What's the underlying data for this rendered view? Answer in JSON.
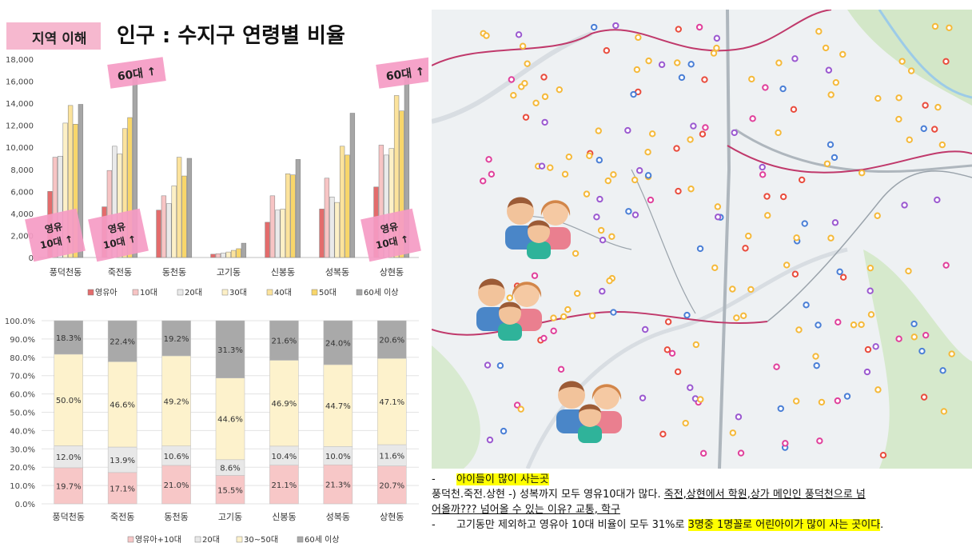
{
  "header": {
    "tag": "지역 이해",
    "title": "인구 : 수지구 연령별 비율"
  },
  "chart_data": [
    {
      "type": "bar",
      "categories": [
        "풍덕천동",
        "죽전동",
        "동천동",
        "고기동",
        "신봉동",
        "성복동",
        "상현동"
      ],
      "series": [
        {
          "name": "영유아",
          "color": "#e36c6c",
          "values": [
            6000,
            4600,
            4300,
            300,
            3200,
            4400,
            6400
          ]
        },
        {
          "name": "10대",
          "color": "#f7c4c4",
          "values": [
            9100,
            7900,
            5600,
            350,
            5600,
            7200,
            10200
          ]
        },
        {
          "name": "20대",
          "color": "#eaeaea",
          "values": [
            9200,
            10100,
            4900,
            400,
            4300,
            5500,
            9300
          ]
        },
        {
          "name": "30대",
          "color": "#fdf0c6",
          "values": [
            12200,
            9400,
            6500,
            500,
            4400,
            5000,
            9900
          ]
        },
        {
          "name": "40대",
          "color": "#fce39c",
          "values": [
            13800,
            11700,
            9100,
            650,
            7600,
            10100,
            14700
          ]
        },
        {
          "name": "50대",
          "color": "#f8d66a",
          "values": [
            12100,
            12700,
            7400,
            800,
            7500,
            9300,
            13300
          ]
        },
        {
          "name": "60세 이상",
          "color": "#a6a6a6",
          "values": [
            13900,
            16500,
            9000,
            1300,
            8900,
            13100,
            16600
          ]
        }
      ],
      "ylim": [
        0,
        18000
      ],
      "yticks": [
        "0",
        "2,000",
        "4,000",
        "6,000",
        "8,000",
        "10,000",
        "12,000",
        "14,000",
        "16,000",
        "18,000"
      ],
      "legend_position": "bottom",
      "annotations": [
        "60대 ↑",
        "60대 ↑",
        "영유\n10대 ↑",
        "영유\n10대 ↑",
        "영유\n10대 ↑"
      ]
    },
    {
      "type": "bar",
      "stacked": true,
      "percent": true,
      "categories": [
        "풍덕천동",
        "죽전동",
        "동천동",
        "고기동",
        "신봉동",
        "성복동",
        "상현동"
      ],
      "series": [
        {
          "name": "영유아+10대",
          "color": "#f7c7c7",
          "values": [
            19.7,
            17.1,
            21.0,
            15.5,
            21.1,
            21.3,
            20.7
          ],
          "labels": [
            "19.7%",
            "17.1%",
            "21.0%",
            "15.5%",
            "21.1%",
            "21.3%",
            "20.7%"
          ]
        },
        {
          "name": "20대",
          "color": "#e8e8e8",
          "values": [
            12.0,
            13.9,
            10.6,
            8.6,
            10.4,
            10.0,
            11.6
          ],
          "labels": [
            "12.0%",
            "13.9%",
            "10.6%",
            "8.6%",
            "10.4%",
            "10.0%",
            "11.6%"
          ]
        },
        {
          "name": "30~50대",
          "color": "#fdf2cc",
          "values": [
            50.0,
            46.6,
            49.2,
            44.6,
            46.9,
            44.7,
            47.1
          ],
          "labels": [
            "50.0%",
            "46.6%",
            "49.2%",
            "44.6%",
            "46.9%",
            "44.7%",
            "47.1%"
          ]
        },
        {
          "name": "60세 이상",
          "color": "#a9a9a9",
          "values": [
            18.3,
            22.4,
            19.2,
            31.3,
            21.6,
            24.0,
            20.6
          ],
          "labels": [
            "18.3%",
            "22.4%",
            "19.2%",
            "31.3%",
            "21.6%",
            "24.0%",
            "20.6%"
          ]
        }
      ],
      "ylim": [
        0,
        100
      ],
      "yticks": [
        "0.0%",
        "10.0%",
        "20.0%",
        "30.0%",
        "40.0%",
        "50.0%",
        "60.0%",
        "70.0%",
        "80.0%",
        "90.0%",
        "100.0%"
      ],
      "legend_position": "bottom"
    }
  ],
  "map": {
    "description_icon": "family-icon",
    "colors": {
      "road": "#f5c24a",
      "boundary": "#c0396b",
      "water": "#9ccbe8",
      "green": "#cfe6c4"
    }
  },
  "notes": {
    "bullet": "-",
    "heading": "아이들이 많이 사는곳",
    "line1_plain": "풍덕천.죽전.상현 -) 성복까지 모두 영유10대가 많다. ",
    "line1_under": "죽전,상현에서 학원,상가 메인인 풍덕천으로 넘",
    "line2_under": "어올까??? 넘어올 수 있는 이유? 교통, 학구",
    "line3_plain": "고기동만 제외하고 영유아 10대 비율이 모두 31%로 ",
    "line3_hl": "3명중 1명꼴로 어린아이가 많이 사는 곳이다",
    "line3_end": "."
  }
}
